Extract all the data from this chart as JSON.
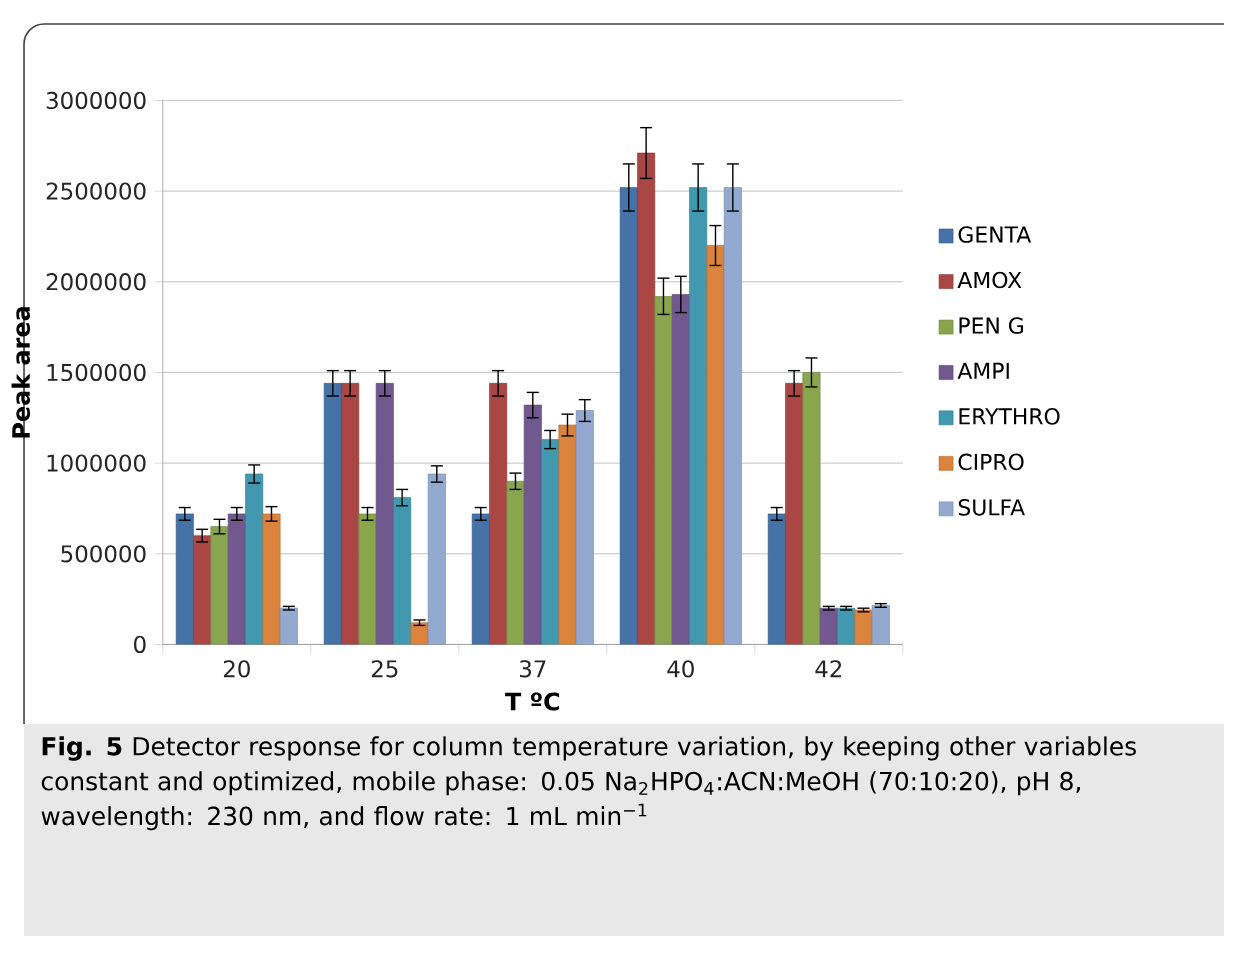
{
  "chart_data": {
    "type": "bar",
    "xlabel": "T ºC",
    "ylabel": "Peak area",
    "categories": [
      "20",
      "25",
      "37",
      "40",
      "42"
    ],
    "series": [
      {
        "name": "GENTA",
        "color": "#4572a7",
        "values": [
          720000,
          1440000,
          720000,
          2520000,
          720000
        ],
        "errors": [
          35000,
          70000,
          35000,
          130000,
          35000
        ]
      },
      {
        "name": "AMOX",
        "color": "#aa4643",
        "values": [
          600000,
          1440000,
          1440000,
          2710000,
          1440000
        ],
        "errors": [
          35000,
          70000,
          70000,
          140000,
          70000
        ]
      },
      {
        "name": "PEN G",
        "color": "#89a54e",
        "values": [
          650000,
          720000,
          900000,
          1920000,
          1500000
        ],
        "errors": [
          40000,
          35000,
          45000,
          100000,
          80000
        ]
      },
      {
        "name": "AMPI",
        "color": "#71588f",
        "values": [
          720000,
          1440000,
          1320000,
          1930000,
          200000
        ],
        "errors": [
          35000,
          70000,
          70000,
          100000,
          10000
        ]
      },
      {
        "name": "ERYTHRO",
        "color": "#4198af",
        "values": [
          940000,
          810000,
          1130000,
          2520000,
          200000
        ],
        "errors": [
          50000,
          45000,
          50000,
          130000,
          10000
        ]
      },
      {
        "name": "CIPRO",
        "color": "#db843d",
        "values": [
          720000,
          120000,
          1210000,
          2200000,
          190000
        ],
        "errors": [
          40000,
          15000,
          60000,
          110000,
          10000
        ]
      },
      {
        "name": "SULFA",
        "color": "#93a9cf",
        "values": [
          200000,
          940000,
          1290000,
          2520000,
          215000
        ],
        "errors": [
          10000,
          45000,
          60000,
          130000,
          10000
        ]
      }
    ],
    "ylim": [
      0,
      3000000
    ],
    "yticks": [
      0,
      500000,
      1000000,
      1500000,
      2000000,
      2500000,
      3000000
    ],
    "grid": "y",
    "legend": "right",
    "annotations": [
      "**Fig. 5** Detector response for column temperature variation, by keeping other variables constant and optimized, mobile phase: 0.05 Na$_{2}$HPO$_{4}$:ACN:MeOH (70:10:20), pH 8, wavelength: 230 nm, and flow rate: 1 mL min$^{−1}$"
    ]
  }
}
